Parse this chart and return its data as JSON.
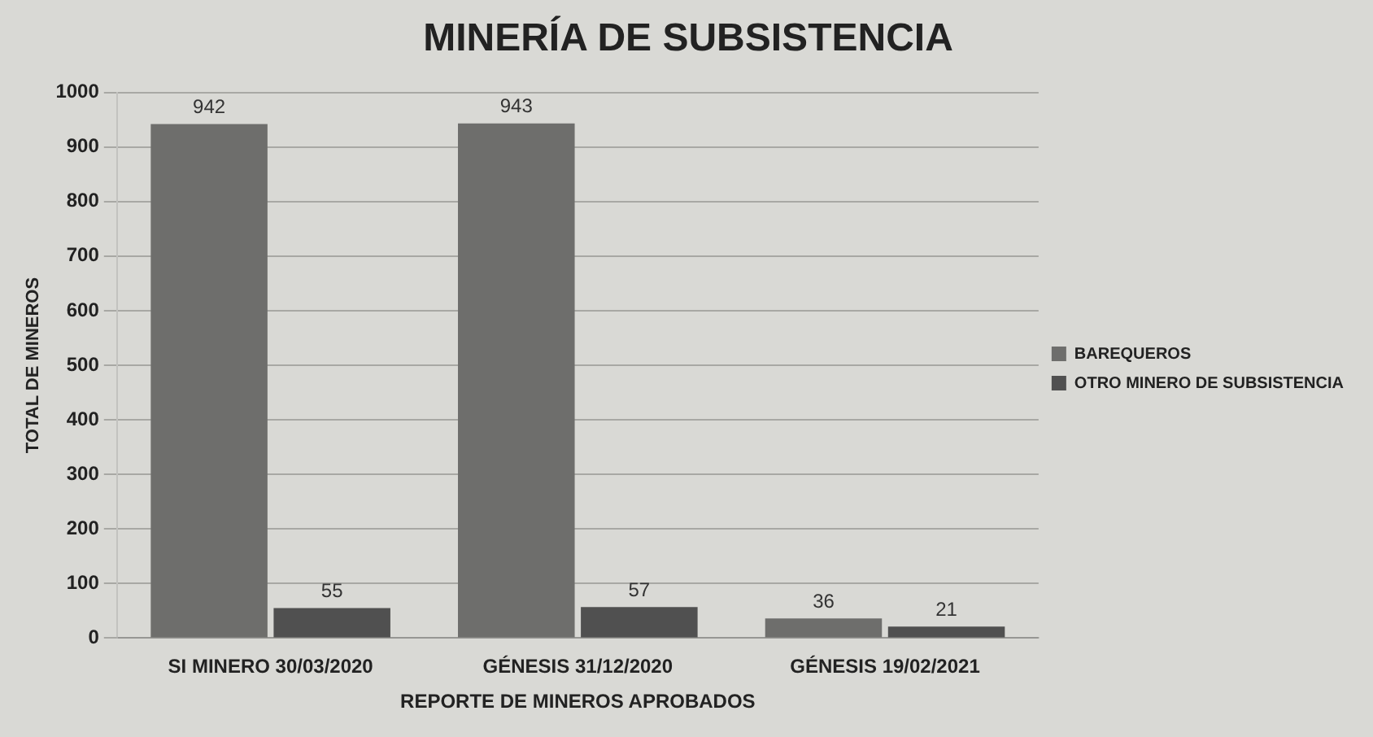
{
  "chart_data": {
    "type": "bar",
    "title": "MINERÍA DE SUBSISTENCIA",
    "xlabel": "REPORTE DE MINEROS APROBADOS",
    "ylabel": "TOTAL DE MINEROS",
    "categories": [
      "SI MINERO 30/03/2020",
      "GÉNESIS 31/12/2020",
      "GÉNESIS 19/02/2021"
    ],
    "series": [
      {
        "name": "BAREQUEROS",
        "color": "#6e6e6c",
        "values": [
          942,
          943,
          36
        ]
      },
      {
        "name": "OTRO MINERO DE SUBSISTENCIA",
        "color": "#505050",
        "values": [
          55,
          57,
          21
        ]
      }
    ],
    "ylim": [
      0,
      1000
    ],
    "yticks": [
      0,
      100,
      200,
      300,
      400,
      500,
      600,
      700,
      800,
      900,
      1000
    ],
    "grid": "y",
    "legend": "right",
    "data_labels": true
  }
}
